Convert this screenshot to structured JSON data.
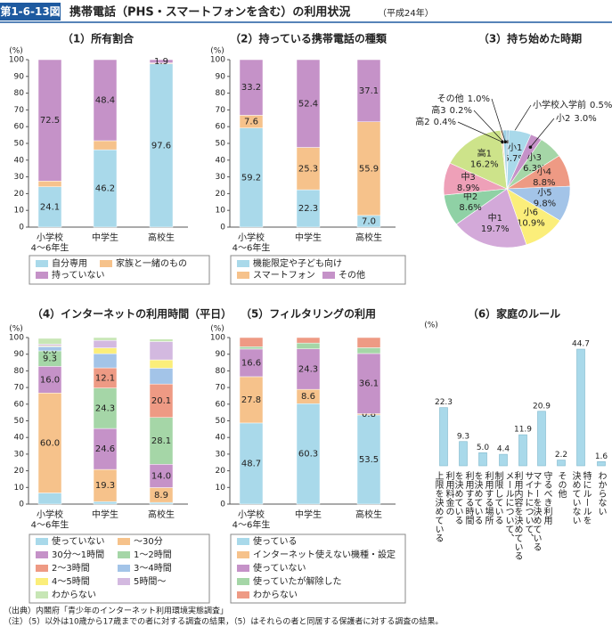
{
  "header": {
    "figure_no": "第1-6-13図",
    "title": "携帯電話（PHS・スマートフォンを含む）の利用状況",
    "year": "（平成24年）"
  },
  "chart_data": [
    {
      "type": "stacked_bar",
      "title": "（1）所有割合",
      "y_label": "(%)",
      "categories": [
        "小学校\n4～6年生",
        "中学生",
        "高校生"
      ],
      "ylim": [
        0,
        100
      ],
      "yticks": [
        0,
        10,
        20,
        30,
        40,
        50,
        60,
        70,
        80,
        90,
        100
      ],
      "series": [
        {
          "name": "自分専用",
          "color": "#a9d9ea",
          "values": [
            24.1,
            46.2,
            97.6
          ],
          "value_labels": [
            "24.1",
            "46.2",
            "97.6"
          ]
        },
        {
          "name": "家族と一緒のもの",
          "color": "#f6c28b",
          "values": [
            3.4,
            5.4,
            0.5
          ]
        },
        {
          "name": "持っていない",
          "color": "#c592c8",
          "values": [
            72.5,
            48.4,
            1.9
          ],
          "value_labels": [
            "72.5",
            "48.4",
            "1.9"
          ]
        }
      ]
    },
    {
      "type": "stacked_bar",
      "title": "（2）持っている携帯電話の種類",
      "y_label": "(%)",
      "categories": [
        "小学校\n4～6年生",
        "中学生",
        "高校生"
      ],
      "ylim": [
        0,
        100
      ],
      "yticks": [
        0,
        10,
        20,
        30,
        40,
        50,
        60,
        70,
        80,
        90,
        100
      ],
      "series": [
        {
          "name": "機能限定や子ども向け",
          "color": "#a9d9ea",
          "values": [
            59.2,
            22.3,
            7.0
          ],
          "value_labels": [
            "59.2",
            "22.3",
            "7.0"
          ]
        },
        {
          "name": "スマートフォン",
          "color": "#f6c28b",
          "values": [
            7.6,
            25.3,
            55.9
          ],
          "value_labels": [
            "7.6",
            "25.3",
            "55.9"
          ]
        },
        {
          "name": "その他",
          "color": "#c592c8",
          "values": [
            33.2,
            52.4,
            37.1
          ],
          "value_labels": [
            "33.2",
            "52.4",
            "37.1"
          ]
        }
      ]
    },
    {
      "type": "pie",
      "title": "（3）持ち始めた時期",
      "labels": [
        "小学校入学前",
        "小1",
        "小2",
        "小3",
        "小4",
        "小5",
        "小6",
        "中1",
        "中2",
        "中3",
        "高1",
        "高2",
        "高3",
        "その他"
      ],
      "values": [
        0.5,
        5.7,
        3.0,
        6.3,
        8.8,
        9.8,
        10.9,
        19.7,
        8.6,
        8.9,
        16.2,
        0.4,
        0.2,
        1.0
      ],
      "value_labels": [
        "0.5%",
        "5.7%",
        "3.0%",
        "6.3%",
        "8.8%",
        "9.8%",
        "10.9%",
        "19.7%",
        "8.6%",
        "8.9%",
        "16.2%",
        "0.4%",
        "0.2%",
        "1.0%"
      ],
      "colors": [
        "#7fb3d5",
        "#a9d9ea",
        "#c592c8",
        "#a5d6a7",
        "#ee9a84",
        "#a3c4e8",
        "#fbee7a",
        "#d3a9d9",
        "#8fd1a5",
        "#eea0b8",
        "#cde38a",
        "#f6c28b",
        "#b57fbf",
        "#9fd0e4"
      ]
    },
    {
      "type": "stacked_bar",
      "title": "（4）インターネットの利用時間（平日）",
      "y_label": "(%)",
      "categories": [
        "小学校\n4～6年生",
        "中学生",
        "高校生"
      ],
      "ylim": [
        0,
        100
      ],
      "yticks": [
        0,
        10,
        20,
        30,
        40,
        50,
        60,
        70,
        80,
        90,
        100
      ],
      "series": [
        {
          "name": "使っていない",
          "color": "#a9d9ea",
          "values": [
            6.7,
            1.5,
            1.0
          ]
        },
        {
          "name": "～30分",
          "color": "#f6c28b",
          "values": [
            60.0,
            19.3,
            8.9
          ],
          "value_labels": [
            "60.0",
            "19.3",
            "8.9"
          ]
        },
        {
          "name": "30分～1時間",
          "color": "#c592c8",
          "values": [
            16.0,
            24.6,
            14.0
          ],
          "value_labels": [
            "16.0",
            "24.6",
            "14.0"
          ]
        },
        {
          "name": "1～2時間",
          "color": "#a5d6a7",
          "values": [
            9.3,
            24.3,
            28.1
          ],
          "value_labels": [
            "9.3",
            "24.3",
            "28.1"
          ]
        },
        {
          "name": "2～3時間",
          "color": "#ee9a84",
          "values": [
            0.0,
            12.1,
            20.1
          ],
          "value_labels": [
            "0.0",
            "12.1",
            "20.1"
          ]
        },
        {
          "name": "3～4時間",
          "color": "#a3c4e8",
          "values": [
            2.5,
            8.5,
            9.5
          ]
        },
        {
          "name": "4～5時間",
          "color": "#fbee7a",
          "values": [
            0.5,
            3.5,
            5.0
          ]
        },
        {
          "name": "5時間～",
          "color": "#d3b9e0",
          "values": [
            1.0,
            4.5,
            11.0
          ]
        },
        {
          "name": "わからない",
          "color": "#c7e6b5",
          "values": [
            3.5,
            1.7,
            1.5
          ]
        }
      ]
    },
    {
      "type": "stacked_bar",
      "title": "（5）フィルタリングの利用",
      "y_label": "(%)",
      "categories": [
        "小学校\n4～6年生",
        "中学生",
        "高校生"
      ],
      "ylim": [
        0,
        100
      ],
      "yticks": [
        0,
        10,
        20,
        30,
        40,
        50,
        60,
        70,
        80,
        90,
        100
      ],
      "series": [
        {
          "name": "使っている",
          "color": "#a9d9ea",
          "values": [
            48.7,
            60.3,
            53.5
          ],
          "value_labels": [
            "48.7",
            "60.3",
            "53.5"
          ]
        },
        {
          "name": "インターネット使えない機種・設定",
          "color": "#f6c28b",
          "values": [
            27.8,
            8.6,
            0.8
          ],
          "value_labels": [
            "27.8",
            "8.6",
            "0.8"
          ]
        },
        {
          "name": "使っていない",
          "color": "#c592c8",
          "values": [
            16.6,
            24.3,
            36.1
          ],
          "value_labels": [
            "16.6",
            "24.3",
            "36.1"
          ]
        },
        {
          "name": "使っていたが解除した",
          "color": "#a5d6a7",
          "values": [
            1.4,
            3.5,
            3.5
          ]
        },
        {
          "name": "わからない",
          "color": "#ee9a84",
          "values": [
            5.5,
            3.3,
            6.1
          ]
        }
      ]
    },
    {
      "type": "bar",
      "title": "（6）家庭のルール",
      "y_label": "(%)",
      "categories": [
        "利用料金の\n上限を決めている",
        "利用する時間\nを決めている",
        "利用する場所\nを決めている",
        "メールについて、\n制限している",
        "サイトについて、\n利用内容を決めている",
        "守るべき利用\nマナーを決めている",
        "その他",
        "特にルールを\n決めていない",
        "わからない"
      ],
      "values": [
        22.3,
        9.3,
        5.0,
        4.4,
        11.9,
        20.9,
        2.2,
        44.7,
        1.6
      ],
      "value_labels": [
        "22.3",
        "9.3",
        "5.0",
        "4.4",
        "11.9",
        "20.9",
        "2.2",
        "44.7",
        "1.6"
      ],
      "color": "#a9d9ea"
    }
  ],
  "footer": {
    "source": "（出典）内閣府「青少年のインターネット利用環境実態調査」",
    "note": "（注）（5）以外は10歳から17歳までの者に対する調査の結果，（5）はそれらの者と同居する保護者に対する調査の結果。"
  }
}
